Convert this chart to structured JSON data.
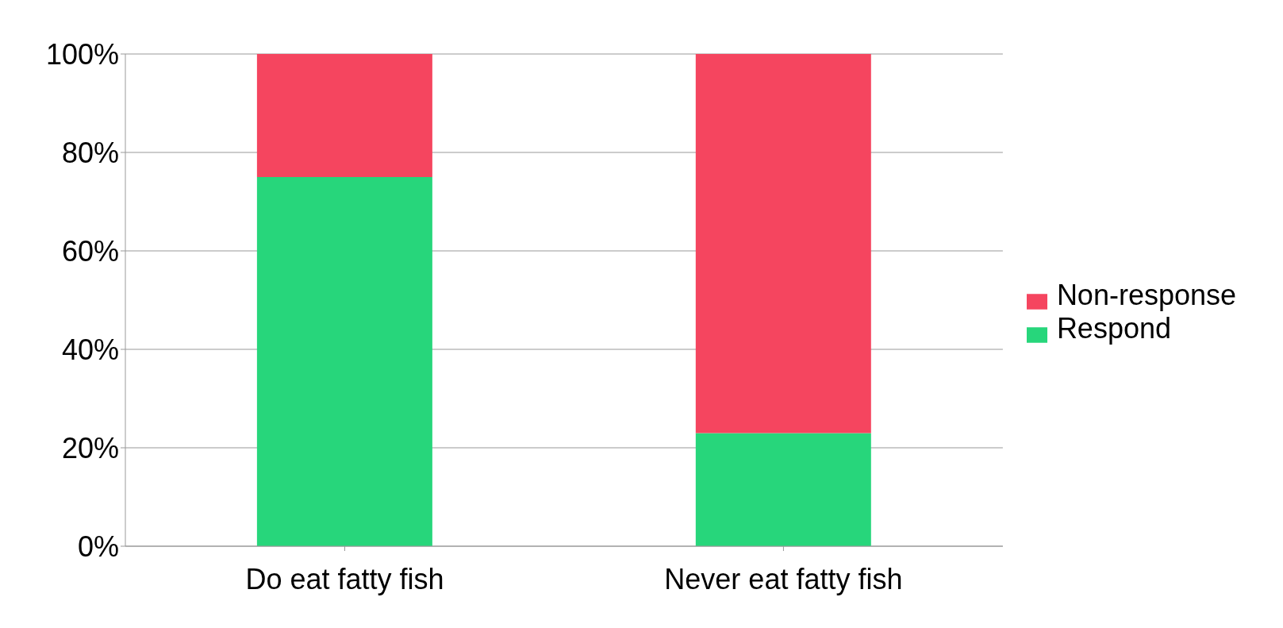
{
  "chart_data": {
    "type": "bar",
    "stacked": true,
    "categories": [
      "Do eat fatty fish",
      "Never eat fatty fish"
    ],
    "series": [
      {
        "name": "Respond",
        "color": "#27d67b",
        "values": [
          75,
          23
        ]
      },
      {
        "name": "Non-response",
        "color": "#f5455f",
        "values": [
          25,
          77
        ]
      }
    ],
    "ylim": [
      0,
      100
    ],
    "yticks": [
      {
        "value": 0,
        "label": "0%"
      },
      {
        "value": 20,
        "label": "20%"
      },
      {
        "value": 40,
        "label": "40%"
      },
      {
        "value": 60,
        "label": "60%"
      },
      {
        "value": 80,
        "label": "80%"
      },
      {
        "value": 100,
        "label": "100%"
      }
    ],
    "grid": "y",
    "legend": "right"
  }
}
